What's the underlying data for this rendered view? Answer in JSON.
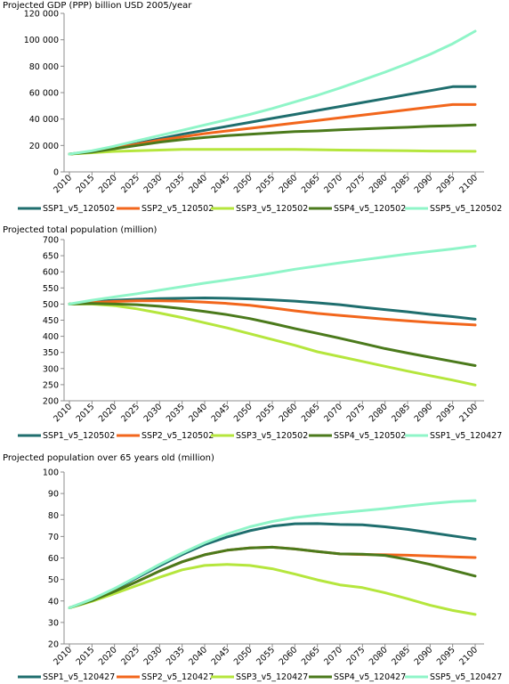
{
  "chart_data": [
    {
      "type": "line",
      "title": "Projected GDP (PPP) billion USD 2005/year",
      "ylim": [
        0,
        120000
      ],
      "y_ticks": [
        0,
        20000,
        40000,
        60000,
        80000,
        100000,
        120000
      ],
      "y_tick_labels": [
        "0",
        "20 000",
        "40 000",
        "60 000",
        "80 000",
        "100 000",
        "120 000"
      ],
      "x_categories": [
        "2010",
        "2015",
        "2020",
        "2025",
        "2030",
        "2035",
        "2040",
        "2045",
        "2050",
        "2055",
        "2060",
        "2065",
        "2070",
        "2075",
        "2080",
        "2085",
        "2090",
        "2095",
        "2100"
      ],
      "x": [
        2010,
        2015,
        2020,
        2025,
        2030,
        2035,
        2040,
        2045,
        2050,
        2055,
        2060,
        2065,
        2070,
        2075,
        2080,
        2085,
        2090,
        2095,
        2100
      ],
      "legend": "bottom",
      "grid": false,
      "series": [
        {
          "name": "SSP1_v5_120502",
          "color": "#1f6e6e",
          "values": [
            13500,
            15500,
            18500,
            21500,
            25000,
            28500,
            31500,
            34500,
            37500,
            40500,
            43500,
            46500,
            49500,
            52500,
            55500,
            58500,
            61500,
            64500,
            64500
          ]
        },
        {
          "name": "SSP2_v5_120502",
          "color": "#f2661c",
          "values": [
            13500,
            15500,
            18000,
            21000,
            24000,
            26500,
            29000,
            31000,
            33000,
            35000,
            37000,
            39000,
            41000,
            43000,
            45000,
            47000,
            49000,
            51000,
            51000
          ]
        },
        {
          "name": "SSP3_v5_120502",
          "color": "#b5e63d",
          "values": [
            13500,
            14500,
            15500,
            16000,
            16500,
            17000,
            17000,
            17000,
            17000,
            17000,
            17000,
            16800,
            16500,
            16300,
            16200,
            16000,
            15800,
            15700,
            15600
          ]
        },
        {
          "name": "SSP4_v5_120502",
          "color": "#4b7a1c",
          "values": [
            13500,
            15000,
            17500,
            20000,
            22500,
            24500,
            26000,
            27500,
            28500,
            29500,
            30500,
            31000,
            31800,
            32500,
            33200,
            33800,
            34500,
            35000,
            35500
          ]
        },
        {
          "name": "SSP5_v5_120502",
          "color": "#8ff5c8",
          "values": [
            13500,
            16000,
            19500,
            23500,
            27500,
            31500,
            35500,
            39500,
            43500,
            48000,
            53000,
            58000,
            63500,
            69500,
            75500,
            82000,
            89000,
            97000,
            106500
          ]
        }
      ]
    },
    {
      "type": "line",
      "title": "Projected total population (million)",
      "ylim": [
        200,
        700
      ],
      "y_ticks": [
        200,
        250,
        300,
        350,
        400,
        450,
        500,
        550,
        600,
        650,
        700
      ],
      "y_tick_labels": [
        "200",
        "250",
        "300",
        "350",
        "400",
        "450",
        "500",
        "550",
        "600",
        "650",
        "700"
      ],
      "x_categories": [
        "2010",
        "2015",
        "2020",
        "2025",
        "2030",
        "2035",
        "2040",
        "2045",
        "2050",
        "2055",
        "2060",
        "2065",
        "2070",
        "2075",
        "2080",
        "2085",
        "2090",
        "2095",
        "2100"
      ],
      "x": [
        2010,
        2015,
        2020,
        2025,
        2030,
        2035,
        2040,
        2045,
        2050,
        2055,
        2060,
        2065,
        2070,
        2075,
        2080,
        2085,
        2090,
        2095,
        2100
      ],
      "legend": "bottom",
      "grid": false,
      "series": [
        {
          "name": "SSP1_v5_120502",
          "color": "#1f6e6e",
          "values": [
            500,
            507,
            512,
            515,
            517,
            518,
            519,
            518,
            516,
            513,
            509,
            504,
            498,
            490,
            483,
            476,
            468,
            461,
            453
          ]
        },
        {
          "name": "SSP2_v5_120502",
          "color": "#f2661c",
          "values": [
            500,
            505,
            508,
            510,
            510,
            509,
            506,
            502,
            496,
            488,
            479,
            471,
            465,
            459,
            453,
            448,
            443,
            439,
            435
          ]
        },
        {
          "name": "SSP3_v5_120502",
          "color": "#b5e63d",
          "values": [
            500,
            500,
            495,
            485,
            472,
            458,
            442,
            426,
            408,
            390,
            372,
            352,
            337,
            322,
            307,
            292,
            278,
            264,
            249
          ]
        },
        {
          "name": "SSP4_v5_120502",
          "color": "#4b7a1c",
          "values": [
            500,
            502,
            500,
            498,
            493,
            486,
            477,
            467,
            455,
            440,
            424,
            409,
            394,
            378,
            362,
            348,
            335,
            322,
            309
          ]
        },
        {
          "name": "SSP1_v5_120427",
          "color": "#8ff5c8",
          "values": [
            500,
            512,
            522,
            532,
            543,
            554,
            565,
            575,
            585,
            596,
            608,
            618,
            628,
            637,
            646,
            655,
            663,
            671,
            680
          ]
        }
      ]
    },
    {
      "type": "line",
      "title": "Projected population over 65 years old (million)",
      "ylim": [
        20,
        100
      ],
      "y_ticks": [
        20,
        30,
        40,
        50,
        60,
        70,
        80,
        90,
        100
      ],
      "y_tick_labels": [
        "20",
        "30",
        "40",
        "50",
        "60",
        "70",
        "80",
        "90",
        "100"
      ],
      "x_categories": [
        "2010",
        "2015",
        "2020",
        "2025",
        "2030",
        "2035",
        "2040",
        "2045",
        "2050",
        "2055",
        "2060",
        "2065",
        "2070",
        "2075",
        "2080",
        "2085",
        "2090",
        "2095",
        "2100"
      ],
      "x": [
        2010,
        2015,
        2020,
        2025,
        2030,
        2035,
        2040,
        2045,
        2050,
        2055,
        2060,
        2065,
        2070,
        2075,
        2080,
        2085,
        2090,
        2095,
        2100
      ],
      "legend": "bottom",
      "grid": false,
      "series": [
        {
          "name": "SSP1_v5_120427",
          "color": "#1f6e6e",
          "values": [
            36.8,
            40.6,
            45.4,
            50.8,
            56.3,
            61.6,
            66.2,
            69.8,
            72.7,
            74.8,
            75.9,
            76.0,
            75.6,
            75.4,
            74.5,
            73.3,
            71.8,
            70.3,
            68.8
          ]
        },
        {
          "name": "SSP2_v5_120427",
          "color": "#f2661c",
          "values": [
            36.8,
            40.2,
            44.4,
            49.0,
            53.9,
            58.2,
            61.5,
            63.6,
            64.7,
            65.0,
            64.2,
            63.0,
            61.9,
            61.6,
            61.5,
            61.3,
            60.9,
            60.5,
            60.2
          ]
        },
        {
          "name": "SSP3_v5_120427",
          "color": "#b5e63d",
          "values": [
            36.8,
            39.8,
            43.4,
            47.2,
            51.0,
            54.5,
            56.5,
            57.0,
            56.5,
            55.0,
            52.5,
            49.8,
            47.5,
            46.2,
            43.8,
            41.0,
            38.0,
            35.6,
            33.7
          ]
        },
        {
          "name": "SSP4_v5_120427",
          "color": "#4b7a1c",
          "values": [
            36.8,
            40.2,
            44.4,
            49.0,
            53.9,
            58.2,
            61.5,
            63.6,
            64.7,
            65.0,
            64.2,
            63.0,
            61.9,
            61.8,
            61.2,
            59.3,
            57.0,
            54.3,
            51.6
          ]
        },
        {
          "name": "SSP5_v5_120427",
          "color": "#8ff5c8",
          "values": [
            36.8,
            40.8,
            45.8,
            51.3,
            57.0,
            62.3,
            67.1,
            71.2,
            74.5,
            77.0,
            78.8,
            80.0,
            81.0,
            82.0,
            83.0,
            84.2,
            85.3,
            86.2,
            86.7
          ]
        }
      ]
    }
  ]
}
